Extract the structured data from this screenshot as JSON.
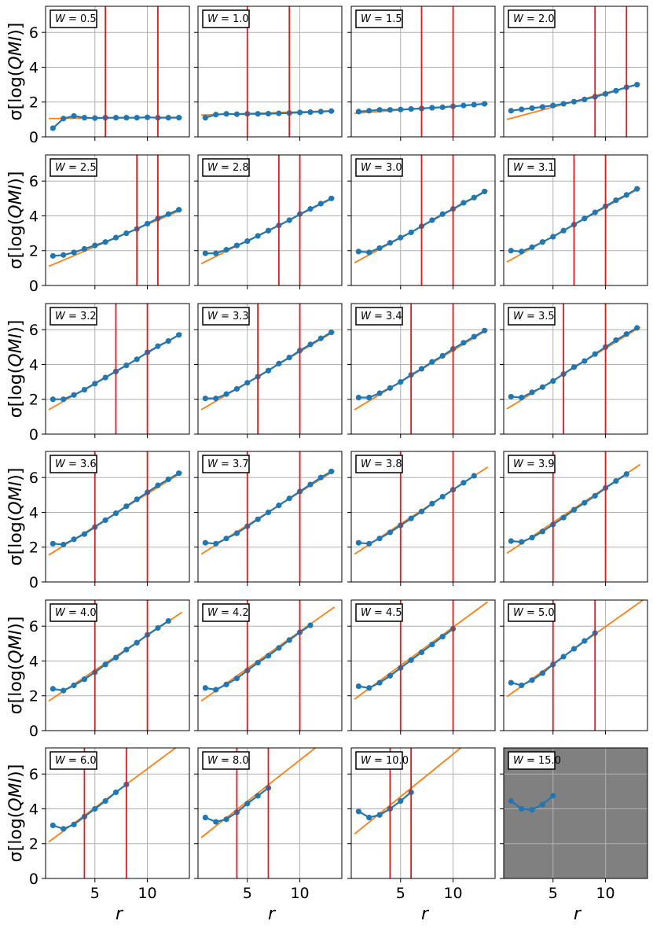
{
  "figure": {
    "ylabel": "σ[log(QMI)]",
    "xlabel": "r"
  },
  "colors": {
    "data": "#1f77b4",
    "fit": "#ff7f0e",
    "vline": "#e41a1c",
    "grid": "#b0b0b0",
    "disabled_bg": "#808080"
  },
  "axes": {
    "xlim": [
      0.3,
      14.0
    ],
    "ylim": [
      0,
      7.5
    ],
    "xticks": [
      5,
      10
    ],
    "yticks": [
      0,
      2,
      4,
      6
    ]
  },
  "chart_data": [
    {
      "type": "line",
      "label": "W = 0.5",
      "x": [
        1,
        2,
        3,
        4,
        5,
        6,
        7,
        8,
        9,
        10,
        11,
        12,
        13
      ],
      "y": [
        0.5,
        1.05,
        1.2,
        1.1,
        1.08,
        1.1,
        1.1,
        1.1,
        1.1,
        1.12,
        1.1,
        1.1,
        1.1
      ],
      "fit": {
        "x": [
          0.6,
          13.3
        ],
        "y": [
          1.05,
          1.13
        ]
      },
      "vlines": [
        6,
        11
      ]
    },
    {
      "type": "line",
      "label": "W = 1.0",
      "x": [
        1,
        2,
        3,
        4,
        5,
        6,
        7,
        8,
        9,
        10,
        11,
        12,
        13
      ],
      "y": [
        1.1,
        1.28,
        1.32,
        1.3,
        1.32,
        1.32,
        1.33,
        1.35,
        1.37,
        1.4,
        1.42,
        1.45,
        1.48
      ],
      "fit": {
        "x": [
          0.6,
          13.3
        ],
        "y": [
          1.25,
          1.5
        ]
      },
      "vlines": [
        5,
        9
      ]
    },
    {
      "type": "line",
      "label": "W = 1.5",
      "x": [
        1,
        2,
        3,
        4,
        5,
        6,
        7,
        8,
        9,
        10,
        11,
        12,
        13
      ],
      "y": [
        1.45,
        1.5,
        1.55,
        1.55,
        1.57,
        1.6,
        1.63,
        1.67,
        1.7,
        1.75,
        1.8,
        1.85,
        1.9
      ],
      "fit": {
        "x": [
          0.6,
          13.3
        ],
        "y": [
          1.35,
          1.9
        ]
      },
      "vlines": [
        7,
        10
      ]
    },
    {
      "type": "line",
      "label": "W = 2.0",
      "x": [
        1,
        2,
        3,
        4,
        5,
        6,
        7,
        8,
        9,
        10,
        11,
        12,
        13
      ],
      "y": [
        1.5,
        1.58,
        1.65,
        1.72,
        1.8,
        1.9,
        2.02,
        2.15,
        2.3,
        2.47,
        2.65,
        2.85,
        3.0
      ],
      "fit": {
        "x": [
          0.6,
          13.3
        ],
        "y": [
          1.0,
          3.05
        ]
      },
      "vlines": [
        9,
        12
      ]
    },
    {
      "type": "line",
      "label": "W = 2.5",
      "x": [
        1,
        2,
        3,
        4,
        5,
        6,
        7,
        8,
        9,
        10,
        11,
        12,
        13
      ],
      "y": [
        1.7,
        1.75,
        1.9,
        2.1,
        2.3,
        2.5,
        2.75,
        3.0,
        3.25,
        3.55,
        3.85,
        4.1,
        4.35
      ],
      "fit": {
        "x": [
          0.6,
          13.3
        ],
        "y": [
          1.1,
          4.35
        ]
      },
      "vlines": [
        9,
        11
      ]
    },
    {
      "type": "line",
      "label": "W = 2.8",
      "x": [
        1,
        2,
        3,
        4,
        5,
        6,
        7,
        8,
        9,
        10,
        11,
        12,
        13
      ],
      "y": [
        1.85,
        1.85,
        2.05,
        2.3,
        2.55,
        2.85,
        3.15,
        3.45,
        3.75,
        4.1,
        4.4,
        4.7,
        5.0
      ],
      "fit": {
        "x": [
          0.6,
          13.3
        ],
        "y": [
          1.25,
          5.05
        ]
      },
      "vlines": [
        8,
        10
      ]
    },
    {
      "type": "line",
      "label": "W = 3.0",
      "x": [
        1,
        2,
        3,
        4,
        5,
        6,
        7,
        8,
        9,
        10,
        11,
        12,
        13
      ],
      "y": [
        1.95,
        1.9,
        2.15,
        2.45,
        2.75,
        3.05,
        3.4,
        3.75,
        4.1,
        4.4,
        4.75,
        5.05,
        5.4
      ],
      "fit": {
        "x": [
          0.6,
          13.3
        ],
        "y": [
          1.3,
          5.45
        ]
      },
      "vlines": [
        7,
        10
      ]
    },
    {
      "type": "line",
      "label": "W = 3.1",
      "x": [
        1,
        2,
        3,
        4,
        5,
        6,
        7,
        8,
        9,
        10,
        11,
        12,
        13
      ],
      "y": [
        2.0,
        1.95,
        2.2,
        2.5,
        2.8,
        3.15,
        3.5,
        3.85,
        4.2,
        4.55,
        4.9,
        5.2,
        5.55
      ],
      "fit": {
        "x": [
          0.6,
          13.3
        ],
        "y": [
          1.35,
          5.6
        ]
      },
      "vlines": [
        7,
        10
      ]
    },
    {
      "type": "line",
      "label": "W = 3.2",
      "x": [
        1,
        2,
        3,
        4,
        5,
        6,
        7,
        8,
        9,
        10,
        11,
        12,
        13
      ],
      "y": [
        2.0,
        2.0,
        2.25,
        2.55,
        2.9,
        3.25,
        3.6,
        3.95,
        4.3,
        4.7,
        5.05,
        5.35,
        5.7
      ],
      "fit": {
        "x": [
          0.6,
          13.3
        ],
        "y": [
          1.4,
          5.8
        ]
      },
      "vlines": [
        7,
        10
      ]
    },
    {
      "type": "line",
      "label": "W = 3.3",
      "x": [
        1,
        2,
        3,
        4,
        5,
        6,
        7,
        8,
        9,
        10,
        11,
        12,
        13
      ],
      "y": [
        2.05,
        2.05,
        2.3,
        2.6,
        2.95,
        3.3,
        3.65,
        4.05,
        4.4,
        4.8,
        5.15,
        5.5,
        5.85
      ],
      "fit": {
        "x": [
          0.6,
          13.3
        ],
        "y": [
          1.4,
          5.9
        ]
      },
      "vlines": [
        6,
        10
      ]
    },
    {
      "type": "line",
      "label": "W = 3.4",
      "x": [
        1,
        2,
        3,
        4,
        5,
        6,
        7,
        8,
        9,
        10,
        11,
        12,
        13
      ],
      "y": [
        2.1,
        2.1,
        2.35,
        2.65,
        3.0,
        3.4,
        3.75,
        4.15,
        4.5,
        4.9,
        5.25,
        5.6,
        5.95
      ],
      "fit": {
        "x": [
          0.6,
          13.3
        ],
        "y": [
          1.4,
          6.0
        ]
      },
      "vlines": [
        6,
        10
      ]
    },
    {
      "type": "line",
      "label": "W = 3.5",
      "x": [
        1,
        2,
        3,
        4,
        5,
        6,
        7,
        8,
        9,
        10,
        11,
        12,
        13
      ],
      "y": [
        2.15,
        2.1,
        2.4,
        2.7,
        3.05,
        3.45,
        3.85,
        4.2,
        4.6,
        5.0,
        5.4,
        5.75,
        6.1
      ],
      "fit": {
        "x": [
          0.6,
          13.3
        ],
        "y": [
          1.45,
          6.15
        ]
      },
      "vlines": [
        6,
        10
      ]
    },
    {
      "type": "line",
      "label": "W = 3.6",
      "x": [
        1,
        2,
        3,
        4,
        5,
        6,
        7,
        8,
        9,
        10,
        11,
        12,
        13
      ],
      "y": [
        2.2,
        2.15,
        2.45,
        2.75,
        3.15,
        3.55,
        3.95,
        4.35,
        4.75,
        5.15,
        5.55,
        5.9,
        6.25
      ],
      "fit": {
        "x": [
          0.6,
          13.3
        ],
        "y": [
          1.55,
          6.3
        ]
      },
      "vlines": [
        5,
        10
      ]
    },
    {
      "type": "line",
      "label": "W = 3.7",
      "x": [
        1,
        2,
        3,
        4,
        5,
        6,
        7,
        8,
        9,
        10,
        11,
        12,
        13
      ],
      "y": [
        2.25,
        2.2,
        2.5,
        2.8,
        3.2,
        3.6,
        4.0,
        4.4,
        4.8,
        5.2,
        5.6,
        6.0,
        6.35
      ],
      "fit": {
        "x": [
          0.6,
          13.3
        ],
        "y": [
          1.6,
          6.4
        ]
      },
      "vlines": [
        5,
        10
      ]
    },
    {
      "type": "line",
      "label": "W = 3.8",
      "x": [
        1,
        2,
        3,
        4,
        5,
        6,
        7,
        8,
        9,
        10,
        11,
        12
      ],
      "y": [
        2.25,
        2.2,
        2.5,
        2.85,
        3.25,
        3.65,
        4.05,
        4.5,
        4.9,
        5.3,
        5.7,
        6.1
      ],
      "fit": {
        "x": [
          0.6,
          13.3
        ],
        "y": [
          1.6,
          6.6
        ]
      },
      "vlines": [
        5,
        10
      ]
    },
    {
      "type": "line",
      "label": "W = 3.9",
      "x": [
        1,
        2,
        3,
        4,
        5,
        6,
        7,
        8,
        9,
        10,
        11,
        12
      ],
      "y": [
        2.35,
        2.3,
        2.55,
        2.9,
        3.3,
        3.7,
        4.15,
        4.55,
        4.95,
        5.4,
        5.8,
        6.2
      ],
      "fit": {
        "x": [
          0.6,
          13.3
        ],
        "y": [
          1.65,
          6.75
        ]
      },
      "vlines": [
        5,
        10
      ]
    },
    {
      "type": "line",
      "label": "W = 4.0",
      "x": [
        1,
        2,
        3,
        4,
        5,
        6,
        7,
        8,
        9,
        10,
        11,
        12
      ],
      "y": [
        2.4,
        2.3,
        2.6,
        2.95,
        3.35,
        3.8,
        4.2,
        4.65,
        5.05,
        5.5,
        5.9,
        6.3
      ],
      "fit": {
        "x": [
          0.6,
          13.3
        ],
        "y": [
          1.7,
          6.8
        ]
      },
      "vlines": [
        5,
        10
      ]
    },
    {
      "type": "line",
      "label": "W = 4.2",
      "x": [
        1,
        2,
        3,
        4,
        5,
        6,
        7,
        8,
        9,
        10,
        11
      ],
      "y": [
        2.45,
        2.35,
        2.65,
        3.0,
        3.45,
        3.9,
        4.3,
        4.75,
        5.2,
        5.65,
        6.05
      ],
      "fit": {
        "x": [
          0.6,
          13.3
        ],
        "y": [
          1.7,
          7.1
        ]
      },
      "vlines": [
        5,
        10
      ]
    },
    {
      "type": "line",
      "label": "W = 4.5",
      "x": [
        1,
        2,
        3,
        4,
        5,
        6,
        7,
        8,
        9,
        10
      ],
      "y": [
        2.55,
        2.45,
        2.75,
        3.15,
        3.6,
        4.05,
        4.5,
        4.95,
        5.4,
        5.85
      ],
      "fit": {
        "x": [
          0.6,
          13.3
        ],
        "y": [
          1.8,
          7.4
        ]
      },
      "vlines": [
        5,
        10
      ]
    },
    {
      "type": "line",
      "label": "W = 5.0",
      "x": [
        1,
        2,
        3,
        4,
        5,
        6,
        7,
        8,
        9
      ],
      "y": [
        2.75,
        2.6,
        2.9,
        3.3,
        3.8,
        4.25,
        4.7,
        5.15,
        5.6
      ],
      "fit": {
        "x": [
          0.6,
          13.8
        ],
        "y": [
          1.95,
          7.6
        ]
      },
      "vlines": [
        5,
        9
      ]
    },
    {
      "type": "line",
      "label": "W = 6.0",
      "x": [
        1,
        2,
        3,
        4,
        5,
        6,
        7,
        8
      ],
      "y": [
        3.05,
        2.85,
        3.1,
        3.55,
        4.0,
        4.45,
        4.95,
        5.4
      ],
      "fit": {
        "x": [
          0.6,
          13.8
        ],
        "y": [
          2.1,
          8.0
        ]
      },
      "vlines": [
        4,
        8
      ]
    },
    {
      "type": "line",
      "label": "W = 8.0",
      "x": [
        1,
        2,
        3,
        4,
        5,
        6,
        7
      ],
      "y": [
        3.5,
        3.25,
        3.4,
        3.8,
        4.3,
        4.75,
        5.2
      ],
      "fit": {
        "x": [
          0.6,
          13.8
        ],
        "y": [
          2.35,
          8.6
        ]
      },
      "vlines": [
        4,
        7
      ]
    },
    {
      "type": "line",
      "label": "W = 10.0",
      "x": [
        1,
        2,
        3,
        4,
        5,
        6
      ],
      "y": [
        3.85,
        3.5,
        3.65,
        4.0,
        4.45,
        4.95
      ],
      "fit": {
        "x": [
          0.6,
          13.8
        ],
        "y": [
          2.55,
          9.0
        ]
      },
      "vlines": [
        4,
        6
      ]
    },
    {
      "type": "line",
      "label": "W = 15.0",
      "x": [
        1,
        2,
        3,
        4,
        5
      ],
      "y": [
        4.45,
        4.0,
        3.95,
        4.25,
        4.75
      ],
      "fit": null,
      "vlines": [],
      "disabled": true
    }
  ]
}
